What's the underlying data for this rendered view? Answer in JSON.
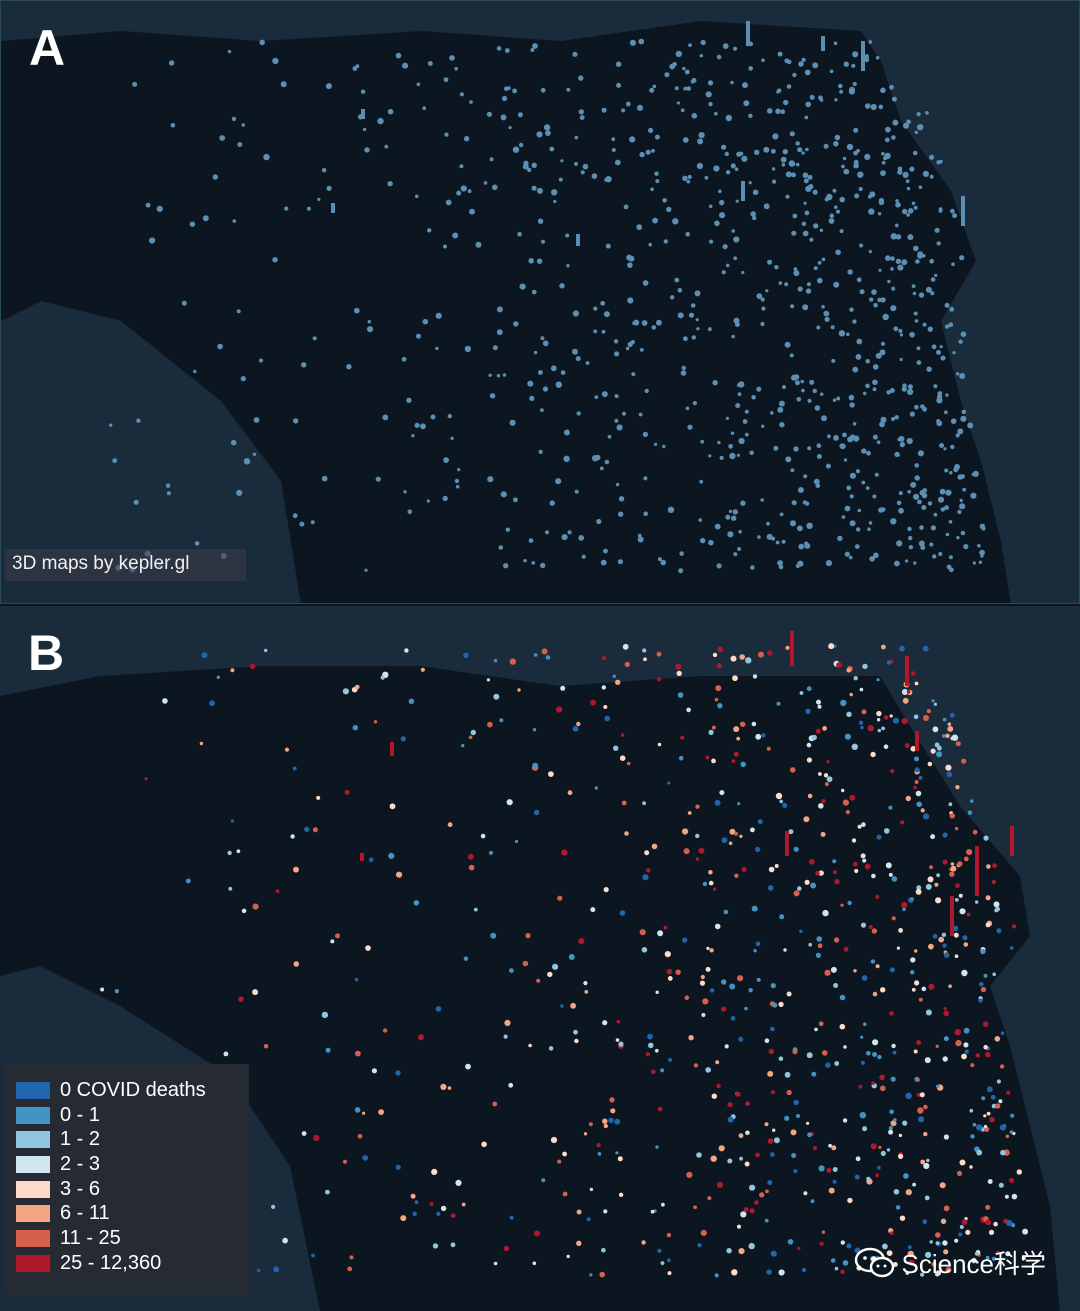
{
  "panel_a": {
    "label": "A",
    "credit": "3D maps by kepler.gl",
    "hex_color": "#5b8fb3"
  },
  "panel_b": {
    "label": "B",
    "legend": {
      "items": [
        {
          "label": "0 COVID deaths",
          "color": "#2166ac"
        },
        {
          "label": "0 - 1",
          "color": "#4393c3"
        },
        {
          "label": "1 - 2",
          "color": "#92c5de"
        },
        {
          "label": "2 - 3",
          "color": "#d1e5f0"
        },
        {
          "label": "3 - 6",
          "color": "#fddbc7"
        },
        {
          "label": "6 - 11",
          "color": "#f4a582"
        },
        {
          "label": "11 - 25",
          "color": "#d6604d"
        },
        {
          "label": "25 - 12,360",
          "color": "#b2182b"
        }
      ]
    }
  },
  "watermark": {
    "icon": "wechat-icon",
    "text": "Science科学"
  },
  "colors": {
    "map_background": "#0f1d2b",
    "land": "#0b1620",
    "water": "#1a2c3c"
  }
}
